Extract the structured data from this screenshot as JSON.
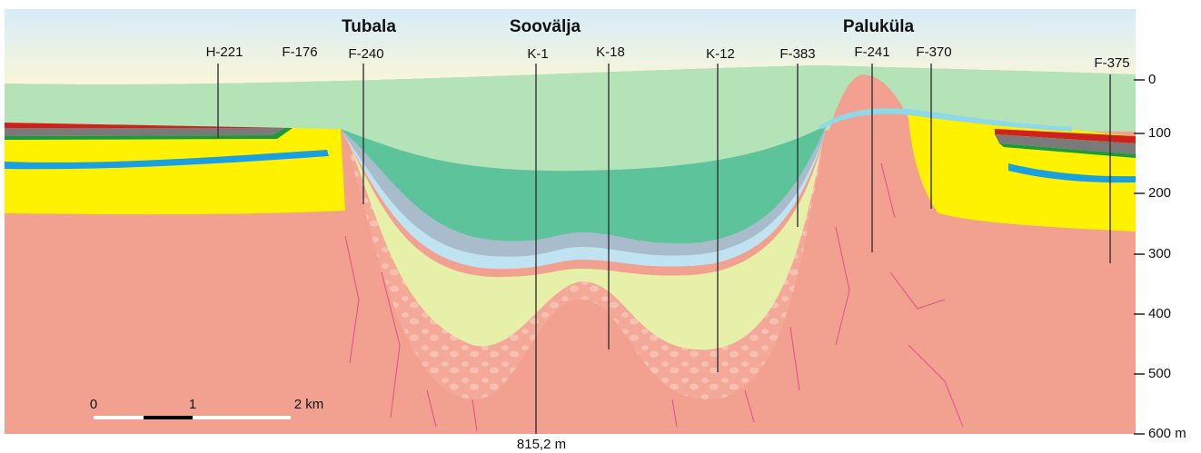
{
  "places": [
    {
      "label": "Tubala"
    },
    {
      "label": "Soovälja"
    },
    {
      "label": "Paluküla"
    }
  ],
  "boreholes": [
    {
      "label": "H-221"
    },
    {
      "label": "F-176"
    },
    {
      "label": "F-240"
    },
    {
      "label": "K-1"
    },
    {
      "label": "K-18"
    },
    {
      "label": "K-12"
    },
    {
      "label": "F-383"
    },
    {
      "label": "F-241"
    },
    {
      "label": "F-370"
    },
    {
      "label": "F-375"
    }
  ],
  "depth_axis": {
    "ticks": [
      "0",
      "100",
      "200",
      "300",
      "400",
      "500",
      "600 m"
    ]
  },
  "scale_bar": {
    "labels": [
      "0",
      "1",
      "2 km"
    ]
  },
  "note": "815,2 m"
}
